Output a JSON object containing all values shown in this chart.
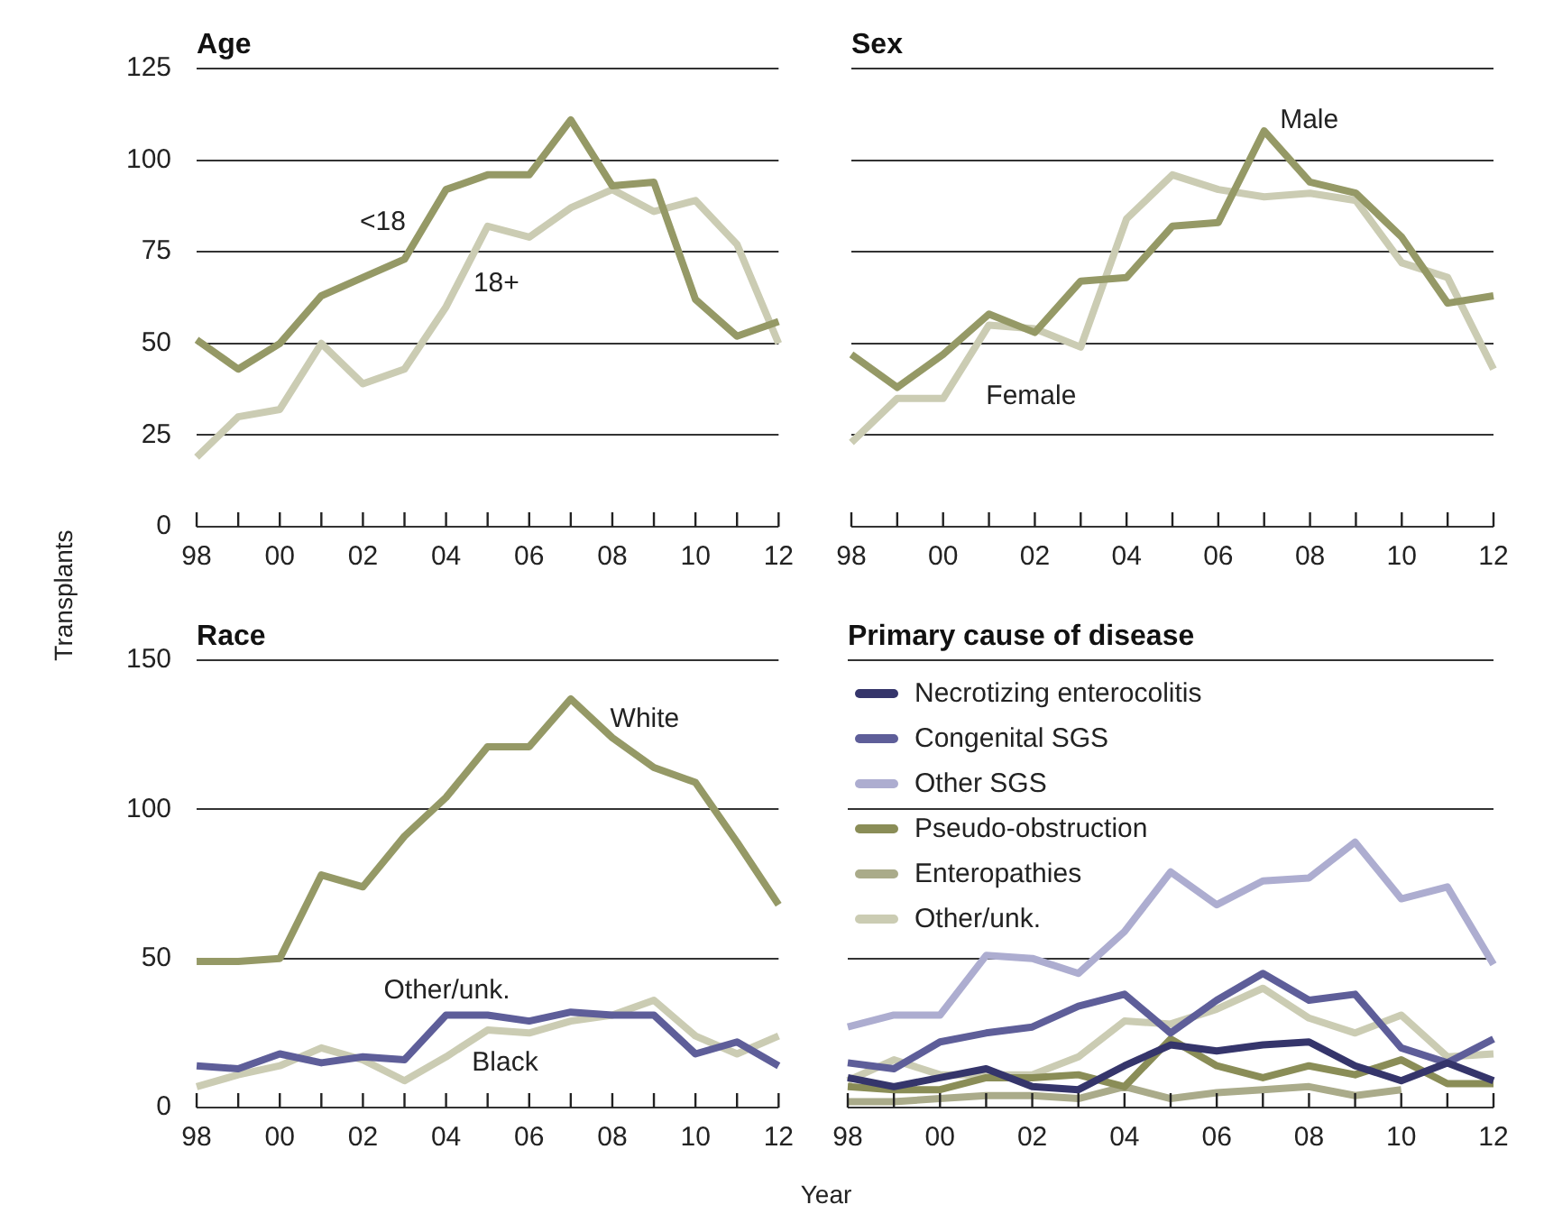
{
  "chart_data": [
    {
      "type": "line",
      "title": "Age",
      "ylabel": "Transplants",
      "categories": [
        "98",
        null,
        "00",
        null,
        "02",
        null,
        "04",
        null,
        "06",
        null,
        "08",
        null,
        "10",
        null,
        "12"
      ],
      "ylim": [
        0,
        125
      ],
      "yticks": [
        0,
        25,
        50,
        75,
        100,
        125
      ],
      "grid": "y",
      "legend": false,
      "series": [
        {
          "name": "<18",
          "color": "#959966",
          "values": [
            51,
            43,
            50,
            63,
            68,
            73,
            92,
            96,
            96,
            111,
            93,
            94,
            62,
            52,
            56
          ]
        },
        {
          "name": "18+",
          "color": "#cbccb3",
          "values": [
            19,
            30,
            32,
            50,
            39,
            43,
            60,
            82,
            79,
            87,
            92,
            86,
            89,
            77,
            50
          ]
        }
      ]
    },
    {
      "type": "line",
      "title": "Sex",
      "categories": [
        "98",
        null,
        "00",
        null,
        "02",
        null,
        "04",
        null,
        "06",
        null,
        "08",
        null,
        "10",
        null,
        "12"
      ],
      "ylim": [
        0,
        125
      ],
      "yticks": [
        0,
        25,
        50,
        75,
        100,
        125
      ],
      "grid": "y",
      "legend": false,
      "tick_labels": "x",
      "series": [
        {
          "name": "Male",
          "color": "#959966",
          "values": [
            47,
            38,
            47,
            58,
            53,
            67,
            68,
            82,
            83,
            108,
            94,
            91,
            79,
            61,
            63
          ]
        },
        {
          "name": "Female",
          "color": "#cbccb3",
          "values": [
            23,
            35,
            35,
            55,
            54,
            49,
            84,
            96,
            92,
            90,
            91,
            89,
            72,
            68,
            43
          ]
        }
      ]
    },
    {
      "type": "line",
      "title": "Race",
      "xlabel": "Year",
      "categories": [
        "98",
        null,
        "00",
        null,
        "02",
        null,
        "04",
        null,
        "06",
        null,
        "08",
        null,
        "10",
        null,
        "12"
      ],
      "ylim": [
        0,
        150
      ],
      "yticks": [
        0,
        50,
        100,
        150
      ],
      "grid": "y",
      "legend": false,
      "series": [
        {
          "name": "White",
          "color": "#959966",
          "values": [
            49,
            49,
            50,
            78,
            74,
            91,
            104,
            121,
            121,
            137,
            124,
            114,
            109,
            89,
            68
          ]
        },
        {
          "name": "Other/unk.",
          "color": "#5e5e99",
          "values": [
            14,
            13,
            18,
            15,
            17,
            16,
            31,
            31,
            29,
            32,
            31,
            31,
            18,
            22,
            14
          ]
        },
        {
          "name": "Black",
          "color": "#cbccb3",
          "values": [
            7,
            11,
            14,
            20,
            16,
            9,
            17,
            26,
            25,
            29,
            31,
            36,
            24,
            18,
            24
          ]
        }
      ]
    },
    {
      "type": "line",
      "title": "Primary cause of disease",
      "categories": [
        "98",
        null,
        "00",
        null,
        "02",
        null,
        "04",
        null,
        "06",
        null,
        "08",
        null,
        "10",
        null,
        "12"
      ],
      "ylim": [
        0,
        150
      ],
      "yticks": [
        0,
        50,
        100,
        150
      ],
      "grid": "y",
      "legend": "top left",
      "tick_labels": "x",
      "series": [
        {
          "name": "Necrotizing enterocolitis",
          "color": "#35356b",
          "values": [
            10,
            7,
            10,
            13,
            7,
            6,
            14,
            21,
            19,
            21,
            22,
            14,
            9,
            15,
            9
          ]
        },
        {
          "name": "Congenital SGS",
          "color": "#5e5e99",
          "values": [
            15,
            13,
            22,
            25,
            27,
            34,
            38,
            25,
            36,
            45,
            36,
            38,
            20,
            15,
            23
          ]
        },
        {
          "name": "Other SGS",
          "color": "#adadd0",
          "values": [
            27,
            31,
            31,
            51,
            50,
            45,
            59,
            79,
            68,
            76,
            77,
            89,
            70,
            74,
            48
          ]
        },
        {
          "name": "Pseudo-obstruction",
          "color": "#8a8d57",
          "values": [
            7,
            6,
            6,
            10,
            10,
            11,
            7,
            23,
            14,
            10,
            14,
            11,
            16,
            8,
            8
          ]
        },
        {
          "name": "Enteropathies",
          "color": "#aaab8a",
          "values": [
            2,
            2,
            3,
            4,
            4,
            3,
            7,
            3,
            5,
            6,
            7,
            4,
            6,
            null,
            null
          ]
        },
        {
          "name": "Other/unk.",
          "color": "#cbccb3",
          "values": [
            9,
            16,
            11,
            11,
            11,
            17,
            29,
            28,
            33,
            40,
            30,
            25,
            31,
            17,
            18
          ]
        }
      ]
    }
  ]
}
